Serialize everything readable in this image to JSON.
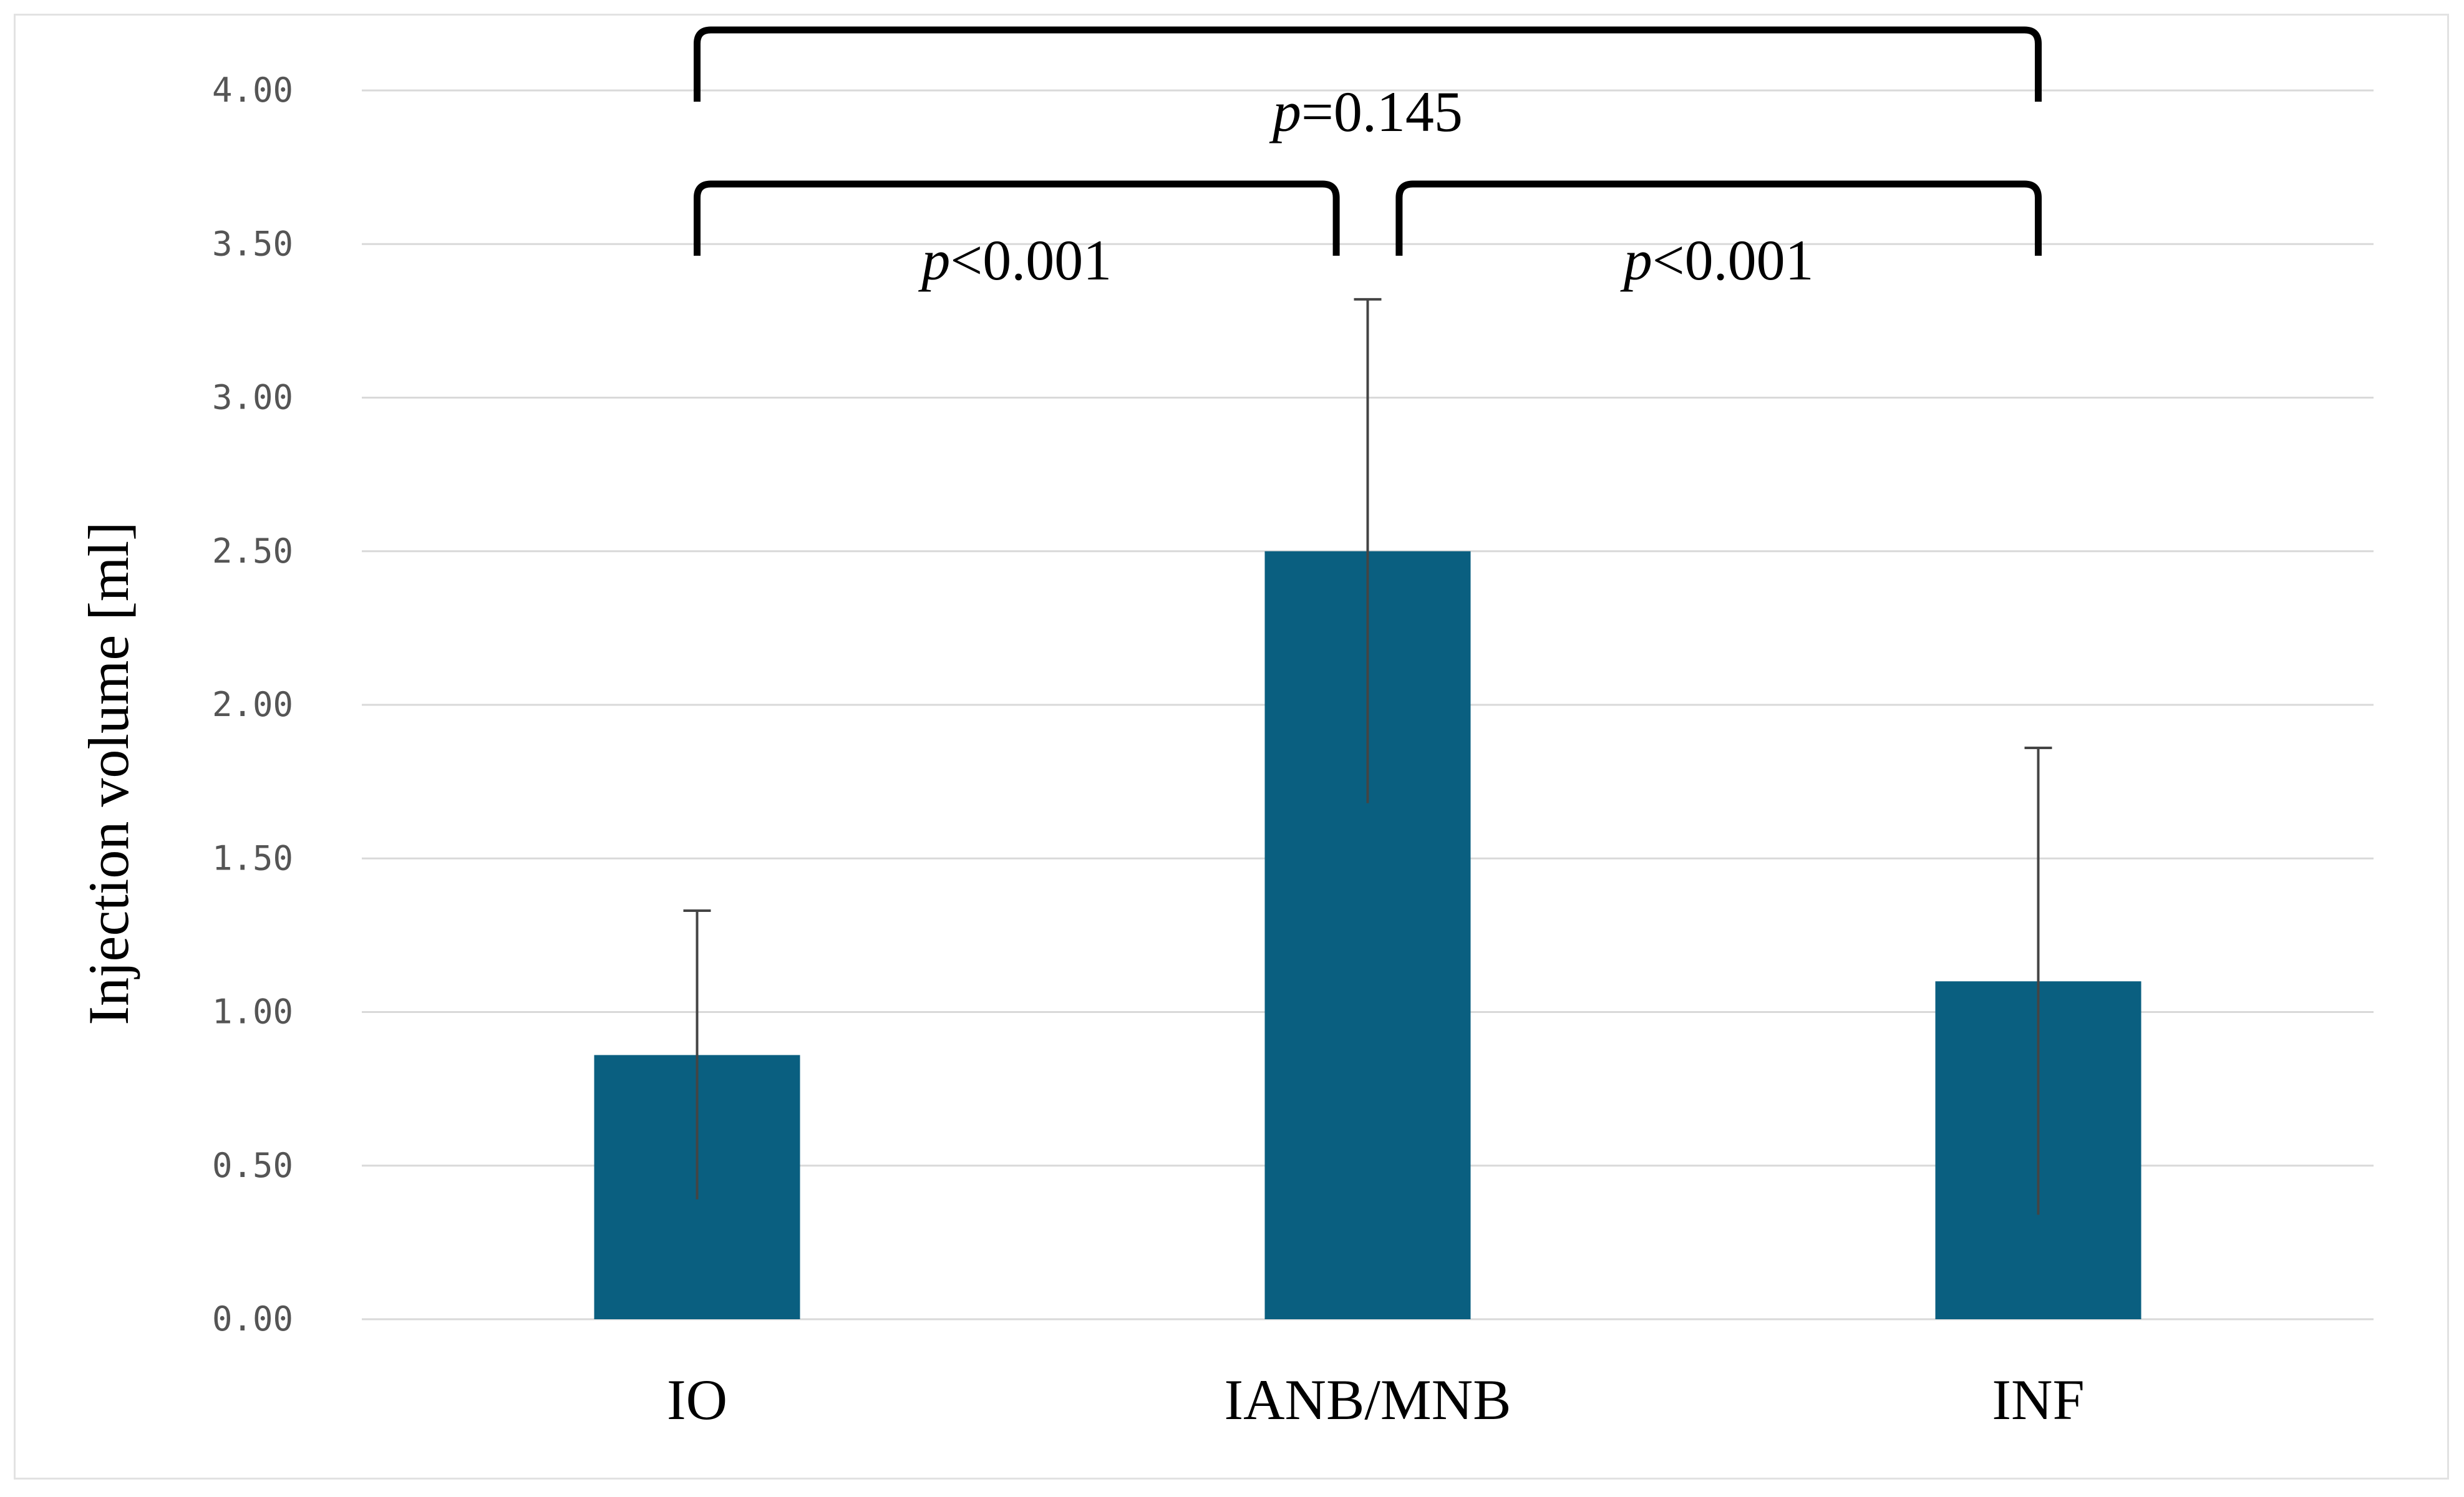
{
  "chart_data": {
    "type": "bar",
    "title": "",
    "xlabel": "",
    "ylabel": "Injection volume [ml]",
    "ylim": [
      0,
      4
    ],
    "ytick_labels": [
      "0.00",
      "0.50",
      "1.00",
      "1.50",
      "2.00",
      "2.50",
      "3.00",
      "3.50",
      "4.00"
    ],
    "yticks": [
      0,
      0.5,
      1.0,
      1.5,
      2.0,
      2.5,
      3.0,
      3.5,
      4.0
    ],
    "grid": true,
    "categories": [
      "IO",
      "IANB/MNB",
      "INF"
    ],
    "values": [
      0.86,
      2.5,
      1.1
    ],
    "error": [
      0.47,
      0.82,
      0.76
    ],
    "bar_color": "#0a5f80",
    "comparisons": [
      {
        "from": "IO",
        "to": "IANB/MNB",
        "symbol": "p",
        "value": "<0.001",
        "level": 1
      },
      {
        "from": "IANB/MNB",
        "to": "INF",
        "symbol": "p",
        "value": "<0.001",
        "level": 1
      },
      {
        "from": "IO",
        "to": "INF",
        "symbol": "p",
        "value": "=0.145",
        "level": 2
      }
    ]
  }
}
